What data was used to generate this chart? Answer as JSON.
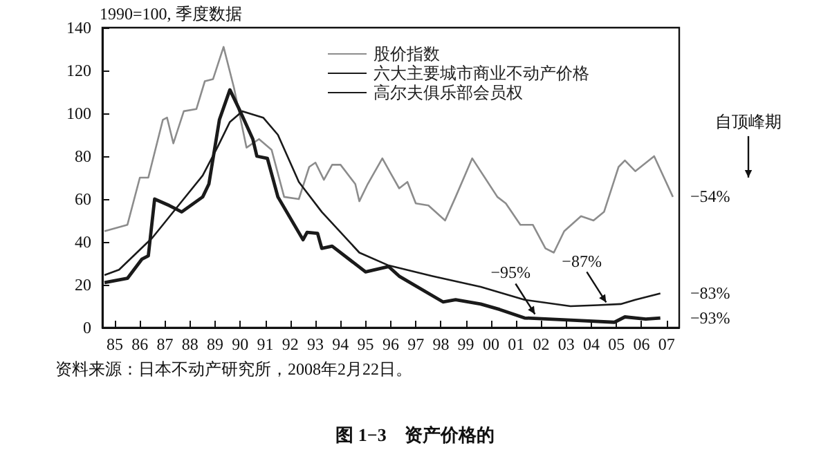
{
  "chart_data": {
    "type": "line",
    "title": "图 1−3　资产价格的",
    "ylabel": "1990=100, 季度数据",
    "legend": "top right",
    "grid": false,
    "marker": "none",
    "line_style": "solid",
    "xlim": [
      "1985-01",
      "2008-01"
    ],
    "xticks": [
      {
        "value": "1985-07",
        "label": "85"
      },
      {
        "value": "1986-07",
        "label": "86"
      },
      {
        "value": "1987-07",
        "label": "87"
      },
      {
        "value": "1988-07",
        "label": "88"
      },
      {
        "value": "1989-07",
        "label": "89"
      },
      {
        "value": "1990-07",
        "label": "90"
      },
      {
        "value": "1991-07",
        "label": "91"
      },
      {
        "value": "1992-07",
        "label": "92"
      },
      {
        "value": "1993-07",
        "label": "93"
      },
      {
        "value": "1994-07",
        "label": "94"
      },
      {
        "value": "1995-07",
        "label": "95"
      },
      {
        "value": "1996-07",
        "label": "96"
      },
      {
        "value": "1997-07",
        "label": "97"
      },
      {
        "value": "1998-07",
        "label": "98"
      },
      {
        "value": "1999-07",
        "label": "99"
      },
      {
        "value": "2000-07",
        "label": "00"
      },
      {
        "value": "2001-07",
        "label": "01"
      },
      {
        "value": "2002-07",
        "label": "02"
      },
      {
        "value": "2003-07",
        "label": "03"
      },
      {
        "value": "2004-07",
        "label": "04"
      },
      {
        "value": "2005-07",
        "label": "05"
      },
      {
        "value": "2006-07",
        "label": "06"
      },
      {
        "value": "2007-07",
        "label": "07"
      }
    ],
    "ylim": [
      0,
      140
    ],
    "yticks": [
      0,
      20,
      40,
      60,
      80,
      100,
      120,
      140
    ],
    "series": [
      {
        "name": "股价指数",
        "color": "#8c8c8c",
        "x": [
          "1985-02",
          "1986-01",
          "1986-07",
          "1986-11",
          "1987-06",
          "1987-08",
          "1987-11",
          "1988-04",
          "1988-10",
          "1989-02",
          "1989-06",
          "1989-11",
          "1990-04",
          "1990-10",
          "1991-04",
          "1991-10",
          "1992-04",
          "1992-11",
          "1993-04",
          "1993-07",
          "1993-11",
          "1994-03",
          "1994-07",
          "1995-02",
          "1995-04",
          "1995-08",
          "1996-03",
          "1996-07",
          "1996-11",
          "1997-03",
          "1997-07",
          "1998-01",
          "1998-09",
          "1999-02",
          "1999-10",
          "2000-10",
          "2001-02",
          "2001-09",
          "2002-03",
          "2002-09",
          "2003-01",
          "2003-06",
          "2004-02",
          "2004-08",
          "2005-01",
          "2005-08",
          "2005-11",
          "2006-04",
          "2007-01",
          "2007-10"
        ],
        "values": [
          45,
          48,
          70,
          70,
          97,
          98,
          86,
          101,
          102,
          115,
          116,
          131,
          112,
          84,
          88,
          83,
          61,
          60,
          75,
          77,
          69,
          76,
          76,
          67,
          59,
          67,
          79,
          72,
          65,
          68,
          58,
          57,
          50,
          61,
          79,
          61,
          58,
          48,
          48,
          37,
          35,
          45,
          52,
          50,
          54,
          75,
          78,
          73,
          80,
          61
        ]
      },
      {
        "name": "六大主要城市商业不动产价格",
        "color": "#1a1a1a",
        "x": [
          "1985-02",
          "1985-09",
          "1987-01",
          "1987-06",
          "1989-01",
          "1989-08",
          "1990-02",
          "1990-08",
          "1991-06",
          "1992-01",
          "1992-11",
          "1993-10",
          "1995-04",
          "1996-06",
          "1998-03",
          "2000-02",
          "2001-11",
          "2003-09",
          "2004-10",
          "2005-09",
          "2006-04",
          "2007-04"
        ],
        "values": [
          24.5,
          27,
          42,
          48,
          71,
          84,
          96,
          101,
          98,
          90,
          68,
          54,
          35,
          29,
          24,
          19,
          13,
          10,
          10.5,
          11,
          13,
          16
        ]
      },
      {
        "name": "高尔夫俱乐部会员权",
        "color": "#1a1a1a",
        "x": [
          "1985-02",
          "1986-01",
          "1986-08",
          "1986-11",
          "1987-02",
          "1987-09",
          "1988-03",
          "1989-01",
          "1989-04",
          "1989-09",
          "1990-02",
          "1990-07",
          "1991-01",
          "1991-03",
          "1991-08",
          "1992-01",
          "1993-01",
          "1993-03",
          "1993-08",
          "1993-10",
          "1994-03",
          "1995-07",
          "1996-06",
          "1996-11",
          "1998-08",
          "1999-02",
          "2000-02",
          "2000-11",
          "2001-11",
          "2003-09",
          "2005-06",
          "2005-11",
          "2006-09",
          "2007-04"
        ],
        "values": [
          21,
          23,
          32,
          33.5,
          60,
          57,
          54,
          61,
          67,
          97,
          111,
          101,
          88,
          80,
          79,
          61,
          41,
          44.5,
          44,
          37,
          38,
          26,
          28.5,
          24,
          12,
          13,
          11,
          8.5,
          4.5,
          3.5,
          2.5,
          5,
          4,
          4.5
        ]
      }
    ],
    "annotations": [
      "自顶峰期",
      {
        "text": "−54%",
        "x": "2007-10",
        "y": 61
      },
      {
        "text": "−83%",
        "x": "2007-04",
        "y": 16
      },
      {
        "text": "−93%",
        "x": "2007-04",
        "y": 4.5
      },
      {
        "text": "−95%",
        "x": "2002-04",
        "y": 5
      },
      {
        "text": "−87%",
        "x": "2005-02",
        "y": 10.5
      },
      "资料来源：日本不动产研究所，2008年2月22日。"
    ]
  }
}
